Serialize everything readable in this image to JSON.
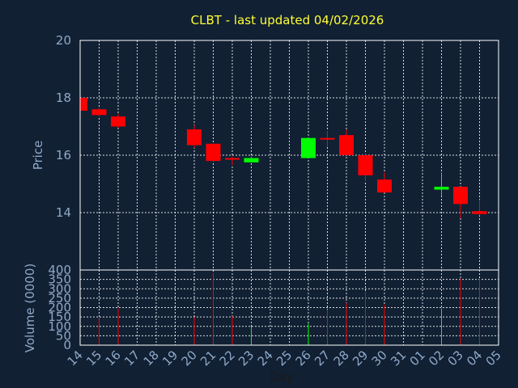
{
  "chart_data": [
    {
      "type": "candlestick",
      "title": "CLBT - last updated 04/02/2026",
      "ylabel": "Price",
      "ylim": [
        12,
        20
      ],
      "yticks": [
        14,
        16,
        18,
        20
      ],
      "x_days": [
        "14",
        "15",
        "16",
        "17",
        "18",
        "19",
        "20",
        "21",
        "22",
        "23",
        "24",
        "25",
        "26",
        "27",
        "28",
        "29",
        "30",
        "31",
        "01",
        "02",
        "03",
        "04",
        "05"
      ],
      "colors": {
        "up": "#00ff00",
        "down": "#ff0000",
        "grid": "#ffffff",
        "background": "#112033",
        "title": "#ffff33",
        "axis_text": "#8fa9c8"
      },
      "candles": [
        {
          "day": "14",
          "open": 18.0,
          "high": 18.0,
          "low": 17.55,
          "close": 17.55
        },
        {
          "day": "15",
          "open": 17.6,
          "high": 17.65,
          "low": 17.35,
          "close": 17.4
        },
        {
          "day": "16",
          "open": 17.35,
          "high": 17.45,
          "low": 16.95,
          "close": 17.0
        },
        {
          "day": "20",
          "open": 16.9,
          "high": 17.05,
          "low": 16.25,
          "close": 16.35
        },
        {
          "day": "21",
          "open": 16.4,
          "high": 16.4,
          "low": 15.75,
          "close": 15.8
        },
        {
          "day": "22",
          "open": 15.9,
          "high": 15.95,
          "low": 15.65,
          "close": 15.85
        },
        {
          "day": "23",
          "open": 15.75,
          "high": 15.95,
          "low": 15.75,
          "close": 15.9
        },
        {
          "day": "26",
          "open": 15.9,
          "high": 16.6,
          "low": 15.9,
          "close": 16.6
        },
        {
          "day": "27",
          "open": 16.6,
          "high": 16.85,
          "low": 16.3,
          "close": 16.58
        },
        {
          "day": "28",
          "open": 16.7,
          "high": 16.9,
          "low": 16.0,
          "close": 16.0
        },
        {
          "day": "29",
          "open": 16.0,
          "high": 16.05,
          "low": 15.1,
          "close": 15.3
        },
        {
          "day": "30",
          "open": 15.15,
          "high": 15.4,
          "low": 14.7,
          "close": 14.7
        },
        {
          "day": "02",
          "open": 14.8,
          "high": 15.4,
          "low": 14.6,
          "close": 14.9
        },
        {
          "day": "03",
          "open": 14.9,
          "high": 14.9,
          "low": 13.8,
          "close": 14.3
        },
        {
          "day": "04",
          "open": 14.05,
          "high": 14.45,
          "low": 13.9,
          "close": 13.95
        }
      ]
    },
    {
      "type": "bar",
      "ylabel": "Volume (0000)",
      "xlabel": "Day",
      "ylim": [
        0,
        400
      ],
      "yticks": [
        0,
        50,
        100,
        150,
        200,
        250,
        300,
        350,
        400
      ],
      "bars": [
        {
          "day": "15",
          "value": 140,
          "color": "#ff0000"
        },
        {
          "day": "16",
          "value": 195,
          "color": "#ff0000"
        },
        {
          "day": "20",
          "value": 150,
          "color": "#ff0000"
        },
        {
          "day": "21",
          "value": 385,
          "color": "#ff0000"
        },
        {
          "day": "22",
          "value": 155,
          "color": "#ff0000"
        },
        {
          "day": "23",
          "value": 100,
          "color": "#00ff00"
        },
        {
          "day": "26",
          "value": 115,
          "color": "#00ff00"
        },
        {
          "day": "27",
          "value": 190,
          "color": "#ff0000"
        },
        {
          "day": "28",
          "value": 225,
          "color": "#ff0000"
        },
        {
          "day": "29",
          "value": 285,
          "color": "#ff0000"
        },
        {
          "day": "30",
          "value": 215,
          "color": "#ff0000"
        },
        {
          "day": "02",
          "value": 195,
          "color": "#00ff00"
        },
        {
          "day": "03",
          "value": 355,
          "color": "#ff0000"
        },
        {
          "day": "04",
          "value": 355,
          "color": "#ff0000"
        }
      ]
    }
  ]
}
